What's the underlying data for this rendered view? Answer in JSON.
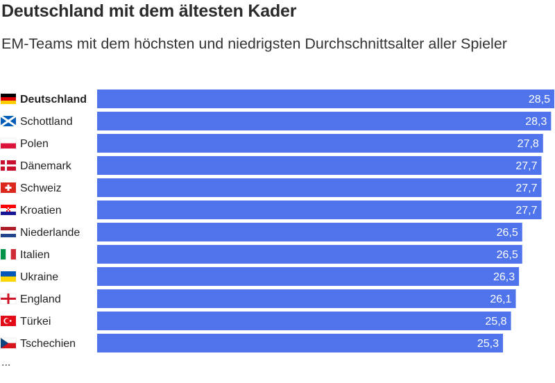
{
  "title": "Deutschland mit dem ältesten Kader",
  "subtitle": "EM-Teams mit dem höchsten und niedrigsten Durchschnittsalter aller Spieler",
  "footnote": "...",
  "colors": {
    "bar": "#4f74ec",
    "label": "#ffffff",
    "text": "#222222"
  },
  "chart_data": {
    "type": "bar",
    "orientation": "horizontal",
    "highlighted": "Deutschland",
    "categories": [
      "Deutschland",
      "Schottland",
      "Polen",
      "Dänemark",
      "Schweiz",
      "Kroatien",
      "Niederlande",
      "Italien",
      "Ukraine",
      "England",
      "Türkei",
      "Tschechien"
    ],
    "flags": [
      "de",
      "sco",
      "pl",
      "dk",
      "ch",
      "hr",
      "nl",
      "it",
      "ua",
      "eng",
      "tr",
      "cz"
    ],
    "values": [
      28.5,
      28.3,
      27.8,
      27.7,
      27.7,
      27.7,
      26.5,
      26.5,
      26.3,
      26.1,
      25.8,
      25.3
    ],
    "value_labels": [
      "28,5",
      "28,3",
      "27,8",
      "27,7",
      "27,7",
      "27,7",
      "26,5",
      "26,5",
      "26,3",
      "26,1",
      "25,8",
      "25,3"
    ]
  }
}
